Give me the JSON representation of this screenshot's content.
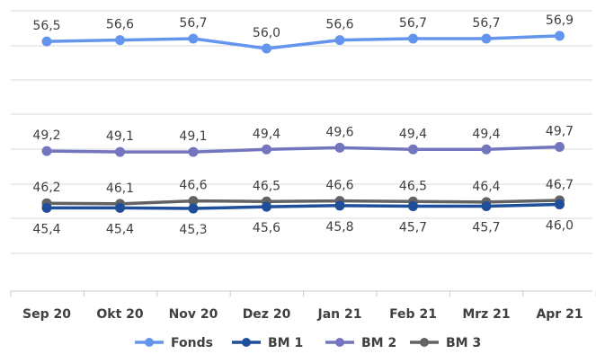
{
  "chart_data": {
    "type": "line",
    "categories": [
      "Sep 20",
      "Okt 20",
      "Nov 20",
      "Dez 20",
      "Jan 21",
      "Feb 21",
      "Mrz 21",
      "Apr 21"
    ],
    "series": [
      {
        "name": "Fonds",
        "color": "#6495ED",
        "values": [
          56.5,
          56.6,
          56.7,
          56.0,
          56.6,
          56.7,
          56.7,
          56.9
        ],
        "labels": [
          "56,5",
          "56,6",
          "56,7",
          "56,0",
          "56,6",
          "56,7",
          "56,7",
          "56,9"
        ],
        "label_position": "above"
      },
      {
        "name": "BM 1",
        "color": "#1F4E9A",
        "values": [
          45.4,
          45.4,
          45.3,
          45.6,
          45.8,
          45.7,
          45.7,
          46.0
        ],
        "labels": [
          "45,4",
          "45,4",
          "45,3",
          "45,6",
          "45,8",
          "45,7",
          "45,7",
          "46,0"
        ],
        "label_position": "below"
      },
      {
        "name": "BM 2",
        "color": "#7375BE",
        "values": [
          49.2,
          49.1,
          49.1,
          49.4,
          49.6,
          49.4,
          49.4,
          49.7
        ],
        "labels": [
          "49,2",
          "49,1",
          "49,1",
          "49,4",
          "49,6",
          "49,4",
          "49,4",
          "49,7"
        ],
        "label_position": "above"
      },
      {
        "name": "BM 3",
        "color": "#636363",
        "values": [
          46.2,
          46.1,
          46.6,
          46.5,
          46.6,
          46.5,
          46.4,
          46.7
        ],
        "labels": [
          "46,2",
          "46,1",
          "46,6",
          "46,5",
          "46,6",
          "46,5",
          "46,4",
          "46,7"
        ],
        "label_position": "above"
      }
    ],
    "grid": true,
    "legend_position": "bottom"
  }
}
